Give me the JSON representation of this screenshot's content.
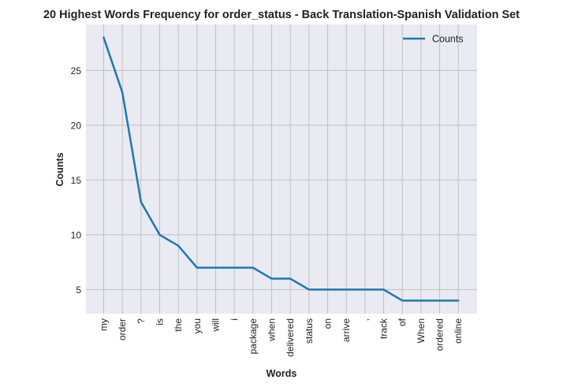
{
  "chart_data": {
    "type": "line",
    "title": "20 Highest Words Frequency for order_status - Back Translation-Spanish Validation Set",
    "xlabel": "Words",
    "ylabel": "Counts",
    "categories": [
      "my",
      "order",
      "?",
      "is",
      "the",
      "you",
      "will",
      "i",
      "package",
      "when",
      "delivered",
      "status",
      "on",
      "arrive",
      ",",
      "track",
      "of",
      "When",
      "ordered",
      "online"
    ],
    "series": [
      {
        "name": "Counts",
        "values": [
          28,
          23,
          13,
          10,
          9,
          7,
          7,
          7,
          7,
          6,
          6,
          5,
          5,
          5,
          5,
          5,
          4,
          4,
          4,
          4
        ],
        "color": "#1f77b4"
      }
    ],
    "yticks": [
      5,
      10,
      15,
      20,
      25
    ],
    "ylim": [
      2.8,
      29.2
    ],
    "grid": true,
    "legend_position": "top-right",
    "background_color": "#eaeaf2",
    "grid_color": "#c0c0c0"
  }
}
